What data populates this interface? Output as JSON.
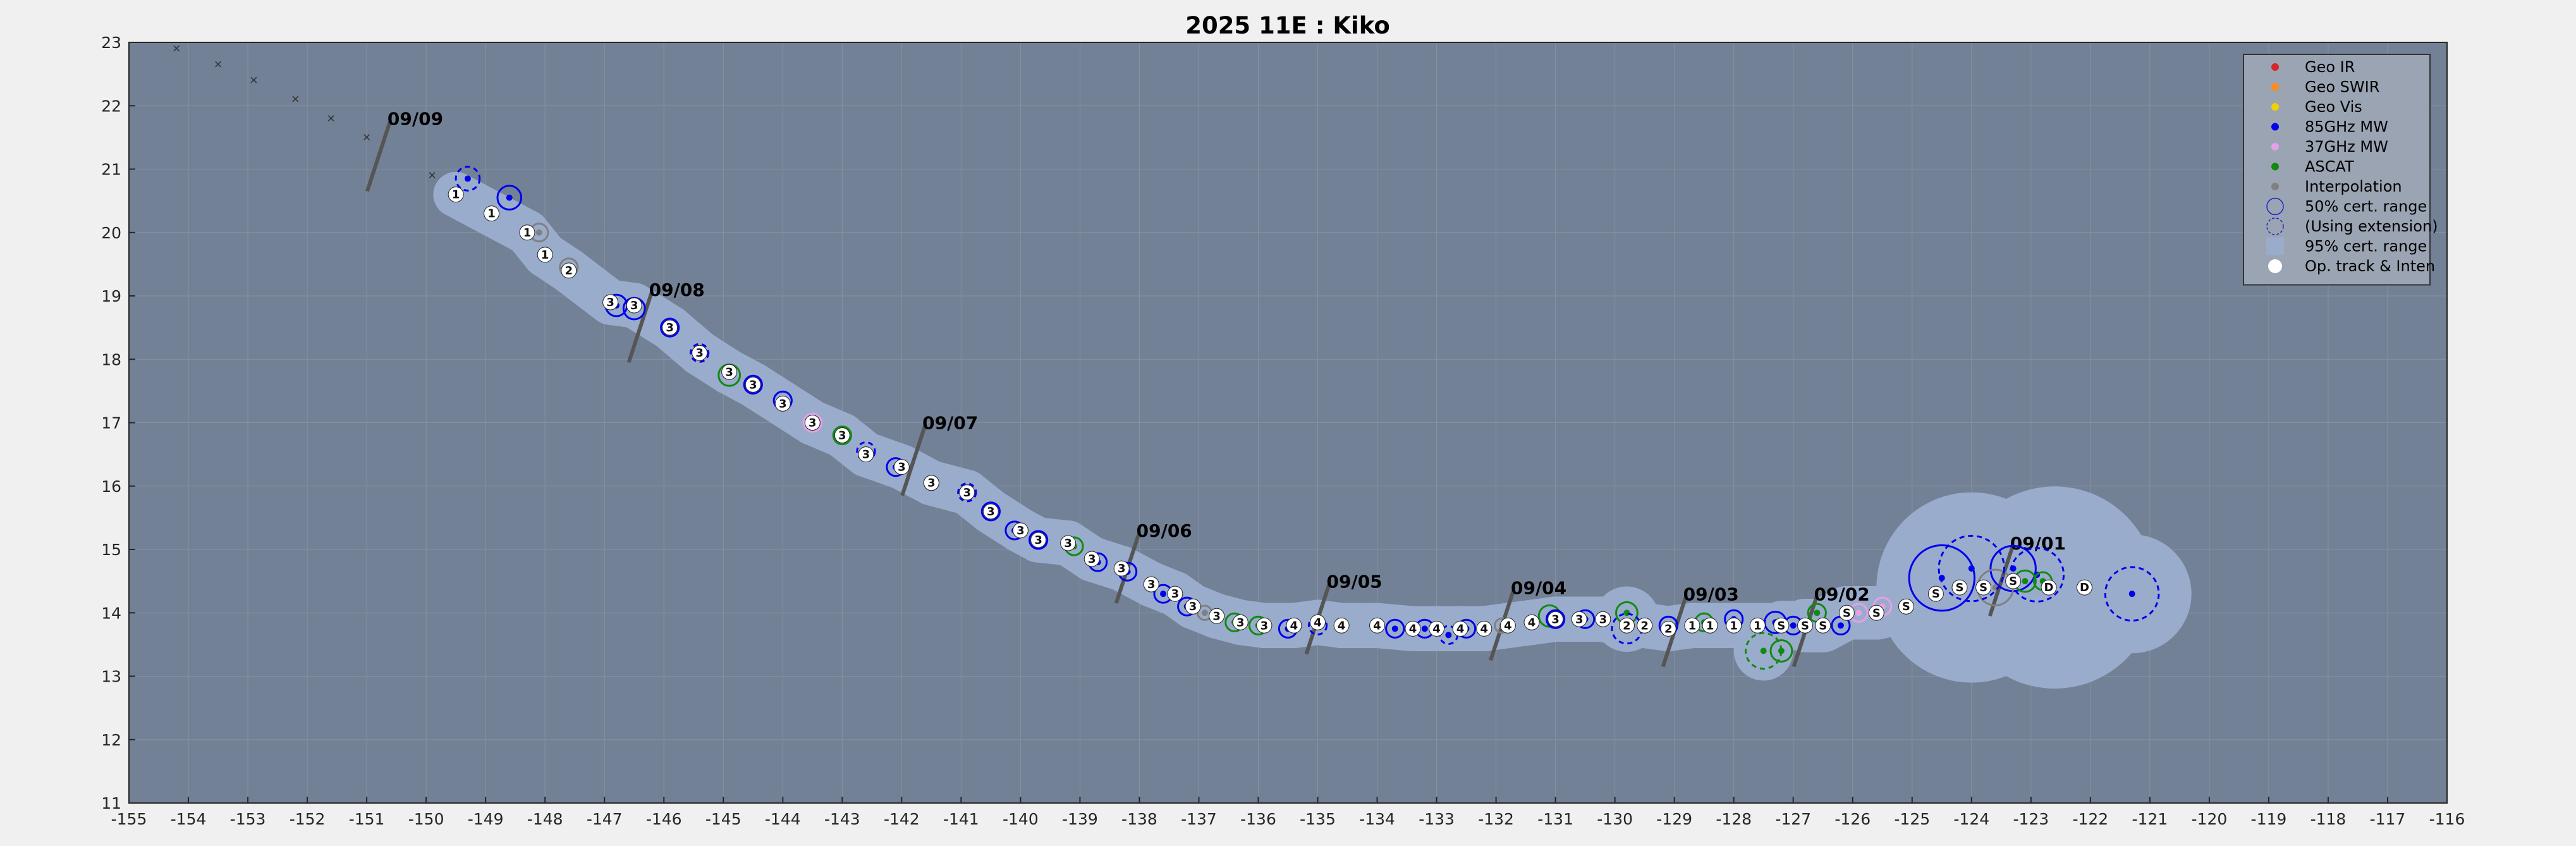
{
  "chart_data": {
    "type": "scatter",
    "title": "2025  11E :  Kiko",
    "xlim": [
      -155,
      -116
    ],
    "ylim": [
      11,
      23
    ],
    "x_ticks": [
      -155,
      -154,
      -153,
      -152,
      -151,
      -150,
      -149,
      -148,
      -147,
      -146,
      -145,
      -144,
      -143,
      -142,
      -141,
      -140,
      -139,
      -138,
      -137,
      -136,
      -135,
      -134,
      -133,
      -132,
      -131,
      -130,
      -129,
      -128,
      -127,
      -126,
      -125,
      -124,
      -123,
      -122,
      -121,
      -120,
      -119,
      -118,
      -117,
      -116
    ],
    "y_ticks": [
      11,
      12,
      13,
      14,
      15,
      16,
      17,
      18,
      19,
      20,
      21,
      22,
      23
    ],
    "grid": true,
    "legend_position": "top-right",
    "legend": [
      {
        "label": "Geo IR",
        "color": "#d62728",
        "kind": "dot"
      },
      {
        "label": "Geo SWIR",
        "color": "#ff8c1a",
        "kind": "dot"
      },
      {
        "label": "Geo Vis",
        "color": "#f0d000",
        "kind": "dot"
      },
      {
        "label": "85GHz MW",
        "color": "#0000ee",
        "kind": "dot"
      },
      {
        "label": "37GHz MW",
        "color": "#e6a0e6",
        "kind": "dot"
      },
      {
        "label": "ASCAT",
        "color": "#108a10",
        "kind": "dot"
      },
      {
        "label": "Interpolation",
        "color": "#808080",
        "kind": "dot"
      },
      {
        "label": "50% cert. range",
        "color": "#2222cc",
        "kind": "ring"
      },
      {
        "label": "(Using extension)",
        "color": "#2222cc",
        "kind": "dashring"
      },
      {
        "label": "95% cert. range",
        "color": "#9aaccb",
        "kind": "square"
      },
      {
        "label": "Op. track & Inten",
        "color": "#ffffff",
        "kind": "bigdot"
      }
    ],
    "colors": {
      "panel": "#738196",
      "envelope": "#9aaccb",
      "mw85": "#0000ee",
      "mw37": "#e6a0e6",
      "ascat": "#108a10",
      "interp": "#808080"
    },
    "date_labels": [
      {
        "text": "09/09",
        "x": -150.8,
        "y": 21.2
      },
      {
        "text": "09/08",
        "x": -146.4,
        "y": 18.5
      },
      {
        "text": "09/07",
        "x": -141.8,
        "y": 16.4
      },
      {
        "text": "09/06",
        "x": -138.2,
        "y": 14.7
      },
      {
        "text": "09/05",
        "x": -135.0,
        "y": 13.9
      },
      {
        "text": "09/04",
        "x": -131.9,
        "y": 13.8
      },
      {
        "text": "09/03",
        "x": -129.0,
        "y": 13.7
      },
      {
        "text": "09/02",
        "x": -126.8,
        "y": 13.7
      },
      {
        "text": "09/01",
        "x": -123.5,
        "y": 14.5
      }
    ],
    "x_marks": [
      {
        "x": -154.2,
        "y": 22.9
      },
      {
        "x": -153.5,
        "y": 22.65
      },
      {
        "x": -152.9,
        "y": 22.4
      },
      {
        "x": -152.2,
        "y": 22.1
      },
      {
        "x": -151.6,
        "y": 21.8
      },
      {
        "x": -151.0,
        "y": 21.5
      },
      {
        "x": -149.9,
        "y": 20.9
      }
    ],
    "track": [
      {
        "x": -122.1,
        "y": 14.4,
        "label": "D"
      },
      {
        "x": -122.7,
        "y": 14.4,
        "label": "D"
      },
      {
        "x": -123.3,
        "y": 14.5,
        "label": "S"
      },
      {
        "x": -123.8,
        "y": 14.4,
        "label": "S"
      },
      {
        "x": -124.2,
        "y": 14.4,
        "label": "S"
      },
      {
        "x": -124.6,
        "y": 14.3,
        "label": "S"
      },
      {
        "x": -125.1,
        "y": 14.1,
        "label": "S"
      },
      {
        "x": -125.6,
        "y": 14.0,
        "label": "S"
      },
      {
        "x": -126.1,
        "y": 14.0,
        "label": "S"
      },
      {
        "x": -126.5,
        "y": 13.8,
        "label": "S"
      },
      {
        "x": -126.8,
        "y": 13.8,
        "label": "S"
      },
      {
        "x": -127.2,
        "y": 13.8,
        "label": "S"
      },
      {
        "x": -127.6,
        "y": 13.8,
        "label": "1"
      },
      {
        "x": -128.0,
        "y": 13.8,
        "label": "1"
      },
      {
        "x": -128.4,
        "y": 13.8,
        "label": "1"
      },
      {
        "x": -128.7,
        "y": 13.8,
        "label": "1"
      },
      {
        "x": -129.1,
        "y": 13.75,
        "label": "2"
      },
      {
        "x": -129.5,
        "y": 13.8,
        "label": "2"
      },
      {
        "x": -129.8,
        "y": 13.8,
        "label": "2"
      },
      {
        "x": -130.2,
        "y": 13.9,
        "label": "3"
      },
      {
        "x": -130.6,
        "y": 13.9,
        "label": "3"
      },
      {
        "x": -131.0,
        "y": 13.9,
        "label": "3"
      },
      {
        "x": -131.4,
        "y": 13.85,
        "label": "4"
      },
      {
        "x": -131.8,
        "y": 13.8,
        "label": "4"
      },
      {
        "x": -132.2,
        "y": 13.75,
        "label": "4"
      },
      {
        "x": -132.6,
        "y": 13.75,
        "label": "4"
      },
      {
        "x": -133.0,
        "y": 13.75,
        "label": "4"
      },
      {
        "x": -133.4,
        "y": 13.75,
        "label": "4"
      },
      {
        "x": -134.0,
        "y": 13.8,
        "label": "4"
      },
      {
        "x": -134.6,
        "y": 13.8,
        "label": "4"
      },
      {
        "x": -135.0,
        "y": 13.85,
        "label": "4"
      },
      {
        "x": -135.4,
        "y": 13.8,
        "label": "4"
      },
      {
        "x": -135.9,
        "y": 13.8,
        "label": "3"
      },
      {
        "x": -136.3,
        "y": 13.85,
        "label": "3"
      },
      {
        "x": -136.7,
        "y": 13.95,
        "label": "3"
      },
      {
        "x": -137.1,
        "y": 14.1,
        "label": "3"
      },
      {
        "x": -137.4,
        "y": 14.3,
        "label": "3"
      },
      {
        "x": -137.8,
        "y": 14.45,
        "label": "3"
      },
      {
        "x": -138.3,
        "y": 14.7,
        "label": "3"
      },
      {
        "x": -138.8,
        "y": 14.85,
        "label": "3"
      },
      {
        "x": -139.2,
        "y": 15.1,
        "label": "3"
      },
      {
        "x": -139.7,
        "y": 15.15,
        "label": "3"
      },
      {
        "x": -140.0,
        "y": 15.3,
        "label": "3"
      },
      {
        "x": -140.5,
        "y": 15.6,
        "label": "3"
      },
      {
        "x": -140.9,
        "y": 15.9,
        "label": "3"
      },
      {
        "x": -141.5,
        "y": 16.05,
        "label": "3"
      },
      {
        "x": -142.0,
        "y": 16.3,
        "label": "3"
      },
      {
        "x": -142.6,
        "y": 16.5,
        "label": "3"
      },
      {
        "x": -143.0,
        "y": 16.8,
        "label": "3"
      },
      {
        "x": -143.5,
        "y": 17.0,
        "label": "3"
      },
      {
        "x": -144.0,
        "y": 17.3,
        "label": "3"
      },
      {
        "x": -144.5,
        "y": 17.6,
        "label": "3"
      },
      {
        "x": -144.9,
        "y": 17.8,
        "label": "3"
      },
      {
        "x": -145.4,
        "y": 18.1,
        "label": "3"
      },
      {
        "x": -145.9,
        "y": 18.5,
        "label": "3"
      },
      {
        "x": -146.5,
        "y": 18.85,
        "label": "3"
      },
      {
        "x": -146.9,
        "y": 18.9,
        "label": "3"
      },
      {
        "x": -147.6,
        "y": 19.4,
        "label": "2"
      },
      {
        "x": -148.0,
        "y": 19.65,
        "label": "1"
      },
      {
        "x": -148.3,
        "y": 20.0,
        "label": "1"
      },
      {
        "x": -148.9,
        "y": 20.3,
        "label": "1"
      },
      {
        "x": -149.5,
        "y": 20.6,
        "label": "1"
      }
    ],
    "fixes": [
      {
        "x": -121.3,
        "y": 14.3,
        "type": "mw85",
        "r": 0.45,
        "dashed": true
      },
      {
        "x": -122.9,
        "y": 14.6,
        "type": "mw85",
        "r": 0.45,
        "dashed": true
      },
      {
        "x": -123.3,
        "y": 14.7,
        "type": "mw85",
        "r": 0.38,
        "dashed": false
      },
      {
        "x": -123.6,
        "y": 14.4,
        "type": "interp",
        "r": 0.3,
        "dashed": false
      },
      {
        "x": -123.1,
        "y": 14.5,
        "type": "ascat",
        "r": 0.18,
        "dashed": false
      },
      {
        "x": -122.8,
        "y": 14.5,
        "type": "ascat",
        "r": 0.15,
        "dashed": false
      },
      {
        "x": -124.0,
        "y": 14.7,
        "type": "mw85",
        "r": 0.55,
        "dashed": true
      },
      {
        "x": -124.5,
        "y": 14.55,
        "type": "mw85",
        "r": 0.55,
        "dashed": false
      },
      {
        "x": -125.5,
        "y": 14.1,
        "type": "mw37",
        "r": 0.15,
        "dashed": false
      },
      {
        "x": -125.9,
        "y": 14.0,
        "type": "mw37",
        "r": 0.15,
        "dashed": false
      },
      {
        "x": -126.2,
        "y": 13.8,
        "type": "mw85",
        "r": 0.15,
        "dashed": false
      },
      {
        "x": -126.6,
        "y": 14.0,
        "type": "ascat",
        "r": 0.15,
        "dashed": false
      },
      {
        "x": -127.2,
        "y": 13.4,
        "type": "ascat",
        "r": 0.18,
        "dashed": false
      },
      {
        "x": -127.5,
        "y": 13.4,
        "type": "ascat",
        "r": 0.3,
        "dashed": true
      },
      {
        "x": -127.3,
        "y": 13.85,
        "type": "mw85",
        "r": 0.18,
        "dashed": false
      },
      {
        "x": -127.0,
        "y": 13.8,
        "type": "mw85",
        "r": 0.15,
        "dashed": false
      },
      {
        "x": -128.0,
        "y": 13.9,
        "type": "mw85",
        "r": 0.15,
        "dashed": false
      },
      {
        "x": -128.5,
        "y": 13.85,
        "type": "ascat",
        "r": 0.15,
        "dashed": false
      },
      {
        "x": -129.1,
        "y": 13.8,
        "type": "mw85",
        "r": 0.15,
        "dashed": false
      },
      {
        "x": -129.8,
        "y": 14.0,
        "type": "ascat",
        "r": 0.18,
        "dashed": false
      },
      {
        "x": -129.8,
        "y": 13.75,
        "type": "mw85",
        "r": 0.25,
        "dashed": true
      },
      {
        "x": -130.5,
        "y": 13.9,
        "type": "mw85",
        "r": 0.15,
        "dashed": false
      },
      {
        "x": -131.1,
        "y": 13.95,
        "type": "ascat",
        "r": 0.18,
        "dashed": false
      },
      {
        "x": -131.0,
        "y": 13.9,
        "type": "mw85",
        "r": 0.15,
        "dashed": false
      },
      {
        "x": -131.9,
        "y": 13.8,
        "type": "interp",
        "r": 0.12,
        "dashed": false
      },
      {
        "x": -132.5,
        "y": 13.75,
        "type": "mw85",
        "r": 0.15,
        "dashed": false
      },
      {
        "x": -132.8,
        "y": 13.65,
        "type": "mw85",
        "r": 0.15,
        "dashed": true
      },
      {
        "x": -133.2,
        "y": 13.75,
        "type": "mw85",
        "r": 0.15,
        "dashed": false
      },
      {
        "x": -133.7,
        "y": 13.75,
        "type": "mw85",
        "r": 0.15,
        "dashed": false
      },
      {
        "x": -135.0,
        "y": 13.8,
        "type": "mw85",
        "r": 0.15,
        "dashed": true
      },
      {
        "x": -135.5,
        "y": 13.75,
        "type": "mw85",
        "r": 0.15,
        "dashed": false
      },
      {
        "x": -136.0,
        "y": 13.8,
        "type": "ascat",
        "r": 0.15,
        "dashed": false
      },
      {
        "x": -136.4,
        "y": 13.85,
        "type": "ascat",
        "r": 0.15,
        "dashed": false
      },
      {
        "x": -136.9,
        "y": 14.0,
        "type": "interp",
        "r": 0.12,
        "dashed": false
      },
      {
        "x": -137.2,
        "y": 14.1,
        "type": "mw85",
        "r": 0.15,
        "dashed": false
      },
      {
        "x": -137.6,
        "y": 14.3,
        "type": "mw85",
        "r": 0.15,
        "dashed": false
      },
      {
        "x": -138.2,
        "y": 14.65,
        "type": "mw85",
        "r": 0.15,
        "dashed": false
      },
      {
        "x": -138.7,
        "y": 14.8,
        "type": "mw85",
        "r": 0.15,
        "dashed": false
      },
      {
        "x": -139.1,
        "y": 15.05,
        "type": "ascat",
        "r": 0.15,
        "dashed": false
      },
      {
        "x": -139.7,
        "y": 15.15,
        "type": "mw85",
        "r": 0.15,
        "dashed": false
      },
      {
        "x": -140.1,
        "y": 15.3,
        "type": "mw85",
        "r": 0.15,
        "dashed": false
      },
      {
        "x": -140.5,
        "y": 15.6,
        "type": "mw85",
        "r": 0.15,
        "dashed": false
      },
      {
        "x": -140.9,
        "y": 15.9,
        "type": "mw85",
        "r": 0.15,
        "dashed": true
      },
      {
        "x": -141.5,
        "y": 16.05,
        "type": "interp",
        "r": 0.12,
        "dashed": false
      },
      {
        "x": -142.1,
        "y": 16.3,
        "type": "mw85",
        "r": 0.15,
        "dashed": false
      },
      {
        "x": -142.6,
        "y": 16.55,
        "type": "mw85",
        "r": 0.15,
        "dashed": true
      },
      {
        "x": -143.0,
        "y": 16.8,
        "type": "ascat",
        "r": 0.15,
        "dashed": false
      },
      {
        "x": -143.5,
        "y": 17.0,
        "type": "mw37",
        "r": 0.15,
        "dashed": false
      },
      {
        "x": -144.0,
        "y": 17.35,
        "type": "mw85",
        "r": 0.15,
        "dashed": false
      },
      {
        "x": -144.5,
        "y": 17.6,
        "type": "mw85",
        "r": 0.15,
        "dashed": false
      },
      {
        "x": -144.9,
        "y": 17.75,
        "type": "ascat",
        "r": 0.18,
        "dashed": false
      },
      {
        "x": -145.4,
        "y": 18.1,
        "type": "mw85",
        "r": 0.15,
        "dashed": true
      },
      {
        "x": -145.9,
        "y": 18.5,
        "type": "mw85",
        "r": 0.15,
        "dashed": false
      },
      {
        "x": -146.5,
        "y": 18.8,
        "type": "mw85",
        "r": 0.18,
        "dashed": false
      },
      {
        "x": -146.8,
        "y": 18.85,
        "type": "mw85",
        "r": 0.18,
        "dashed": false
      },
      {
        "x": -147.6,
        "y": 19.45,
        "type": "interp",
        "r": 0.15,
        "dashed": false
      },
      {
        "x": -148.1,
        "y": 20.0,
        "type": "interp",
        "r": 0.15,
        "dashed": false
      },
      {
        "x": -148.6,
        "y": 20.55,
        "type": "mw85",
        "r": 0.2,
        "dashed": false
      },
      {
        "x": -149.3,
        "y": 20.85,
        "type": "mw85",
        "r": 0.2,
        "dashed": true
      }
    ]
  }
}
